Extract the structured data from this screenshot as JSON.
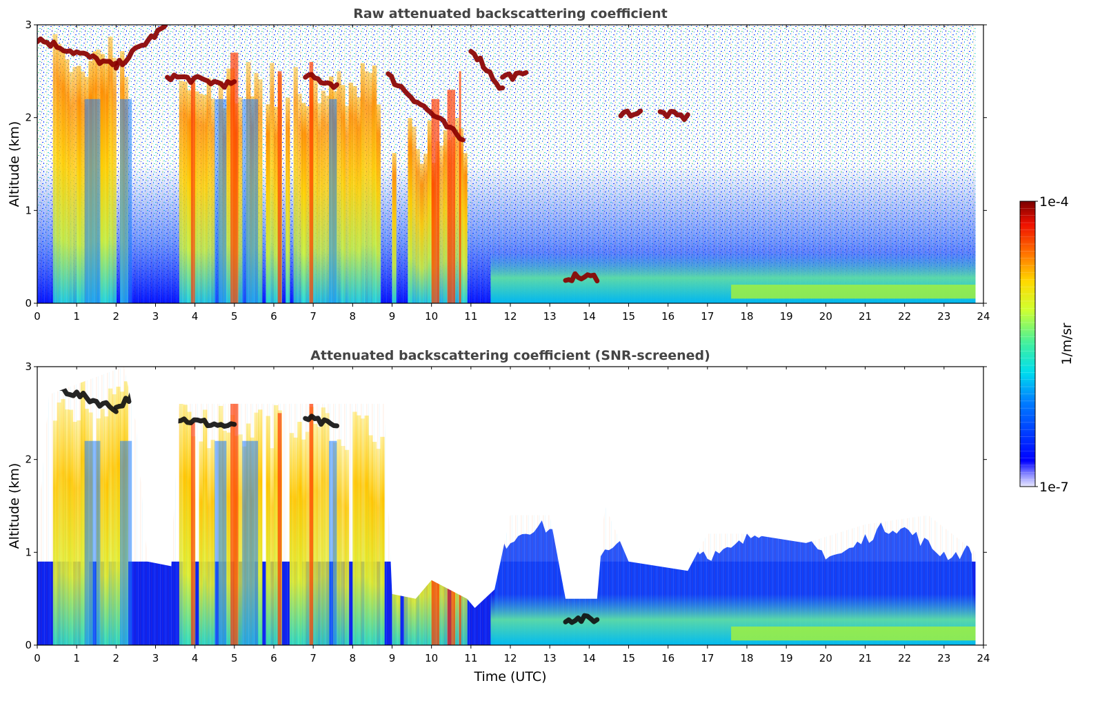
{
  "chart_data": [
    {
      "type": "heatmap",
      "title": "Raw attenuated backscattering coefficient",
      "xlabel": "",
      "ylabel": "Altitude (km)",
      "xlim": [
        0,
        24
      ],
      "ylim": [
        0,
        3
      ],
      "xticks": [
        0,
        1,
        2,
        3,
        4,
        5,
        6,
        7,
        8,
        9,
        10,
        11,
        12,
        13,
        14,
        15,
        16,
        17,
        18,
        19,
        20,
        21,
        22,
        23,
        24
      ],
      "yticks": [
        0,
        1,
        2,
        3
      ],
      "screened": false,
      "data_end_hour": 23.8,
      "cloud_layers": [
        {
          "t_start": 0.0,
          "t_end": 2.0,
          "alt_start": 2.85,
          "alt_end": 2.55
        },
        {
          "t_start": 2.0,
          "t_end": 3.3,
          "alt_start": 2.55,
          "alt_end": 3.0
        },
        {
          "t_start": 3.3,
          "t_end": 5.0,
          "alt_start": 2.45,
          "alt_end": 2.35
        },
        {
          "t_start": 6.8,
          "t_end": 7.6,
          "alt_start": 2.45,
          "alt_end": 2.35
        },
        {
          "t_start": 8.9,
          "t_end": 10.8,
          "alt_start": 2.45,
          "alt_end": 1.75
        },
        {
          "t_start": 11.0,
          "t_end": 11.8,
          "alt_start": 2.75,
          "alt_end": 2.3
        },
        {
          "t_start": 11.8,
          "t_end": 12.4,
          "alt_start": 2.45,
          "alt_end": 2.45
        },
        {
          "t_start": 13.4,
          "t_end": 14.2,
          "alt_start": 0.28,
          "alt_end": 0.28
        },
        {
          "t_start": 14.8,
          "t_end": 15.3,
          "alt_start": 2.05,
          "alt_end": 2.05
        },
        {
          "t_start": 15.8,
          "t_end": 16.5,
          "alt_start": 2.05,
          "alt_end": 2.0
        }
      ],
      "aerosol_columns": [
        {
          "t_start": 0.4,
          "t_end": 2.3,
          "top": 2.9
        },
        {
          "t_start": 3.6,
          "t_end": 8.8,
          "top": 2.6
        },
        {
          "t_start": 9.0,
          "t_end": 10.9,
          "top": 2.0
        }
      ],
      "boundary_layer": {
        "t_start": 11.5,
        "t_end": 23.8,
        "top": 0.2
      }
    },
    {
      "type": "heatmap",
      "title": "Attenuated backscattering coefficient (SNR-screened)",
      "xlabel": "Time (UTC)",
      "ylabel": "Altitude (km)",
      "xlim": [
        0,
        24
      ],
      "ylim": [
        0,
        3
      ],
      "xticks": [
        0,
        1,
        2,
        3,
        4,
        5,
        6,
        7,
        8,
        9,
        10,
        11,
        12,
        13,
        14,
        15,
        16,
        17,
        18,
        19,
        20,
        21,
        22,
        23,
        24
      ],
      "yticks": [
        0,
        1,
        2,
        3
      ],
      "screened": true,
      "data_end_hour": 23.8
    }
  ],
  "colorbar": {
    "min_label": "1e-7",
    "max_label": "1e-4",
    "label": "1/m/sr",
    "colormap": "jet",
    "min": 1e-07,
    "max": 0.0001,
    "scale": "log"
  }
}
